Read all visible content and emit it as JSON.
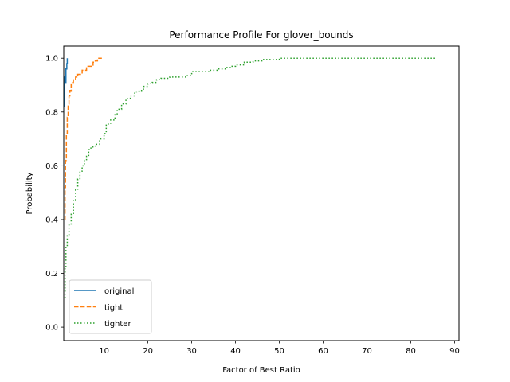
{
  "chart_data": {
    "type": "line",
    "title": "Performance Profile For glover_bounds",
    "xlabel": "Factor of Best Ratio",
    "ylabel": "Probability",
    "xlim": [
      0.8,
      91
    ],
    "ylim": [
      -0.05,
      1.045
    ],
    "xticks": [
      10,
      20,
      30,
      40,
      50,
      60,
      70,
      80,
      90
    ],
    "yticks": [
      0.0,
      0.2,
      0.4,
      0.6,
      0.8,
      1.0
    ],
    "ytick_labels": [
      "0.0",
      "0.2",
      "0.4",
      "0.6",
      "0.8",
      "1.0"
    ],
    "grid": false,
    "legend_position": "lower-left",
    "series": [
      {
        "name": "original",
        "color": "#1f77b4",
        "dash": "solid",
        "points": [
          [
            1.0,
            0.82
          ],
          [
            1.0,
            0.93
          ],
          [
            1.1,
            0.93
          ],
          [
            1.1,
            0.91
          ],
          [
            1.3,
            0.96
          ],
          [
            1.5,
            0.98
          ],
          [
            1.6,
            1.0
          ]
        ]
      },
      {
        "name": "tight",
        "color": "#ff7f0e",
        "dash": "dashed",
        "points": [
          [
            1.0,
            0.4
          ],
          [
            1.1,
            0.52
          ],
          [
            1.2,
            0.62
          ],
          [
            1.4,
            0.72
          ],
          [
            1.6,
            0.78
          ],
          [
            1.8,
            0.83
          ],
          [
            2.0,
            0.86
          ],
          [
            2.2,
            0.88
          ],
          [
            2.5,
            0.91
          ],
          [
            3.0,
            0.92
          ],
          [
            3.5,
            0.93
          ],
          [
            4.0,
            0.94
          ],
          [
            5.0,
            0.955
          ],
          [
            6.0,
            0.97
          ],
          [
            7.0,
            0.97
          ],
          [
            7.5,
            0.985
          ],
          [
            8.0,
            0.99
          ],
          [
            8.5,
            1.0
          ],
          [
            9.5,
            1.0
          ]
        ]
      },
      {
        "name": "tighter",
        "color": "#2ca02c",
        "dash": "dotted",
        "points": [
          [
            1.0,
            0.11
          ],
          [
            1.1,
            0.22
          ],
          [
            1.3,
            0.3
          ],
          [
            1.6,
            0.34
          ],
          [
            2.0,
            0.38
          ],
          [
            2.5,
            0.42
          ],
          [
            3.0,
            0.47
          ],
          [
            3.5,
            0.51
          ],
          [
            4.0,
            0.55
          ],
          [
            4.5,
            0.58
          ],
          [
            5.0,
            0.6
          ],
          [
            5.5,
            0.62
          ],
          [
            6.0,
            0.635
          ],
          [
            6.5,
            0.66
          ],
          [
            7.0,
            0.67
          ],
          [
            8.0,
            0.68
          ],
          [
            9.0,
            0.7
          ],
          [
            10.0,
            0.72
          ],
          [
            10.5,
            0.755
          ],
          [
            11.5,
            0.77
          ],
          [
            12.5,
            0.79
          ],
          [
            13.0,
            0.81
          ],
          [
            14.0,
            0.83
          ],
          [
            15.0,
            0.85
          ],
          [
            16.0,
            0.86
          ],
          [
            17.0,
            0.875
          ],
          [
            18.0,
            0.88
          ],
          [
            19.0,
            0.895
          ],
          [
            20.0,
            0.905
          ],
          [
            21.0,
            0.91
          ],
          [
            22.0,
            0.92
          ],
          [
            23.0,
            0.925
          ],
          [
            25.0,
            0.93
          ],
          [
            27.0,
            0.93
          ],
          [
            29.0,
            0.935
          ],
          [
            30.0,
            0.95
          ],
          [
            32.0,
            0.95
          ],
          [
            34.0,
            0.955
          ],
          [
            36.0,
            0.96
          ],
          [
            38.0,
            0.965
          ],
          [
            39.0,
            0.97
          ],
          [
            40.0,
            0.975
          ],
          [
            42.0,
            0.985
          ],
          [
            44.0,
            0.99
          ],
          [
            46.0,
            0.995
          ],
          [
            50.0,
            1.0
          ],
          [
            86.0,
            1.0
          ]
        ]
      }
    ]
  }
}
